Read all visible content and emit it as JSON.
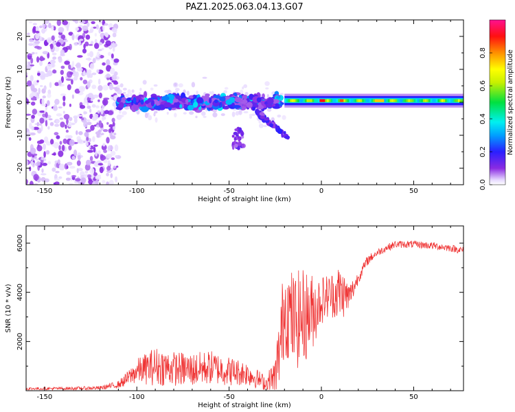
{
  "title": "PAZ1.2025.063.04.13.G07",
  "colors": {
    "snr_line": "#ef3434",
    "frame": "#000000",
    "background": "#ffffff"
  },
  "chart_data": [
    {
      "type": "heatmap",
      "xlabel": "Height of straight line (km)",
      "ylabel": "Frequency (Hz)",
      "xlim": [
        -160,
        77
      ],
      "ylim": [
        -25,
        25
      ],
      "x_ticks": [
        -150,
        -100,
        -50,
        0,
        50
      ],
      "y_ticks": [
        -20,
        -10,
        0,
        10,
        20
      ],
      "colorbar": {
        "label": "Normalized spectral amplitude",
        "range": [
          0,
          1
        ],
        "ticks": [
          0.0,
          0.2,
          0.4,
          0.6,
          0.8
        ],
        "colormap": "rainbow (white/lavender at 0 → purple → blue → cyan → green → yellow → orange → red → magenta at 1)"
      },
      "regions": [
        {
          "name": "scattered noise",
          "x_range": [
            -160,
            -110
          ],
          "freq_range": [
            -25,
            25
          ],
          "amplitude": 0.05
        },
        {
          "name": "blob band",
          "x_range": [
            -110,
            -22
          ],
          "freq_range": [
            -5,
            5
          ],
          "amplitude": 0.15
        },
        {
          "name": "branch",
          "x_range": [
            -40,
            -15
          ],
          "freq_range": [
            -13,
            -3
          ],
          "amplitude": 0.1
        },
        {
          "name": "narrow carrier line",
          "x_range": [
            -20,
            77
          ],
          "freq_center": 0.5,
          "amplitude": 0.6
        }
      ]
    },
    {
      "type": "line",
      "xlabel": "Height of straight line (km)",
      "ylabel": "SNR (10 * v/v)",
      "xlim": [
        -160,
        77
      ],
      "ylim": [
        0,
        6700
      ],
      "x_ticks": [
        -150,
        -100,
        -50,
        0,
        50
      ],
      "y_ticks": [
        2000,
        4000,
        6000
      ],
      "series": [
        {
          "x": [
            -160,
            -140,
            -120,
            -110,
            -105,
            -100,
            -90,
            -80,
            -70,
            -60,
            -50,
            -40,
            -30,
            -25,
            -22,
            -20,
            -15,
            -10,
            -5,
            0,
            5,
            10,
            15,
            20,
            25,
            30,
            35,
            40,
            50,
            60,
            70,
            77
          ],
          "y": [
            80,
            90,
            110,
            250,
            500,
            800,
            1000,
            900,
            850,
            950,
            800,
            700,
            300,
            600,
            2000,
            3500,
            2800,
            3000,
            3200,
            3700,
            3900,
            4000,
            3800,
            4600,
            5300,
            5600,
            5800,
            5950,
            5950,
            5900,
            5800,
            5700
          ],
          "amp": [
            60,
            60,
            80,
            150,
            300,
            500,
            800,
            700,
            700,
            700,
            600,
            500,
            300,
            800,
            1800,
            2000,
            2000,
            2000,
            1600,
            1000,
            900,
            1200,
            600,
            250,
            200,
            150,
            150,
            150,
            150,
            150,
            150,
            150
          ]
        }
      ]
    }
  ]
}
